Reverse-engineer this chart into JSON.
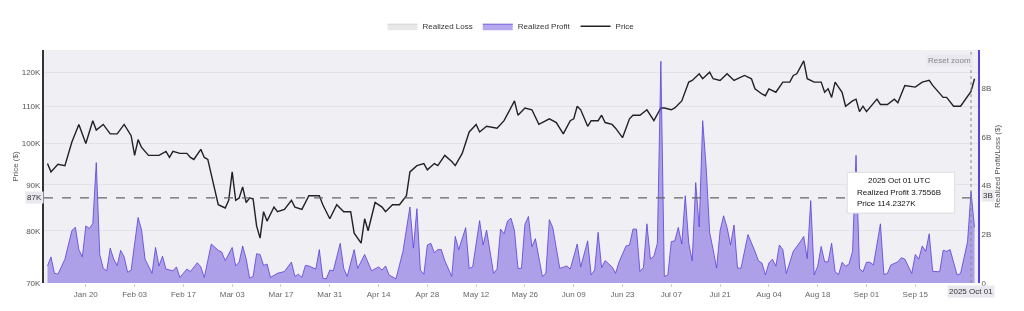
{
  "chart_data": {
    "type": "line",
    "ylabel": "Price ($)",
    "y2label": "Realized Profit/Loss ($)",
    "log": "y",
    "grid": "y",
    "legend": "top",
    "marker": "none",
    "line_style": "solid",
    "xlim": [
      "2025-01-08",
      "2025-10-03"
    ],
    "xticks": [
      {
        "value": "2025-01-20",
        "label": "Jan 20"
      },
      {
        "value": "2025-02-03",
        "label": "Feb 03"
      },
      {
        "value": "2025-02-17",
        "label": "Feb 17"
      },
      {
        "value": "2025-03-03",
        "label": "Mar 03"
      },
      {
        "value": "2025-03-17",
        "label": "Mar 17"
      },
      {
        "value": "2025-03-31",
        "label": "Mar 31"
      },
      {
        "value": "2025-04-14",
        "label": "Apr 14"
      },
      {
        "value": "2025-04-28",
        "label": "Apr 28"
      },
      {
        "value": "2025-05-12",
        "label": "May 12"
      },
      {
        "value": "2025-05-26",
        "label": "May 26"
      },
      {
        "value": "2025-06-09",
        "label": "Jun 09"
      },
      {
        "value": "2025-06-23",
        "label": "Jun 23"
      },
      {
        "value": "2025-07-07",
        "label": "Jul 07"
      },
      {
        "value": "2025-07-21",
        "label": "Jul 21"
      },
      {
        "value": "2025-08-04",
        "label": "Aug 04"
      },
      {
        "value": "2025-08-18",
        "label": "Aug 18"
      },
      {
        "value": "2025-09-01",
        "label": "Sep 01"
      },
      {
        "value": "2025-09-15",
        "label": "Sep 15"
      }
    ],
    "ylim": [
      70000,
      127000
    ],
    "yticks": [
      {
        "value": 70000,
        "label": "70K"
      },
      {
        "value": 80000,
        "label": "80K"
      },
      {
        "value": 90000,
        "label": "90K"
      },
      {
        "value": 100000,
        "label": "100K"
      },
      {
        "value": 110000,
        "label": "110K"
      },
      {
        "value": 120000,
        "label": "120K"
      }
    ],
    "y2lim": [
      0,
      9560000000.0
    ],
    "y2ticks": [
      {
        "value": 0,
        "label": "0"
      },
      {
        "value": 2000000000.0,
        "label": "2B"
      },
      {
        "value": 4000000000.0,
        "label": "4B"
      },
      {
        "value": 6000000000.0,
        "label": "6B"
      },
      {
        "value": 8000000000.0,
        "label": "8B"
      }
    ],
    "ref_lines": [
      {
        "axis": "y",
        "value": 87000,
        "label": "87K",
        "color": "#666666",
        "line_style": "dashed"
      },
      {
        "axis": "x",
        "value": "2025-10-01",
        "label": "2025 Oct 01",
        "color": "#888888",
        "line_style": "dotted"
      }
    ],
    "annotations": [
      "2025 Oct 01 UTC",
      "Realized Profit 3.7556B",
      "Price 114.2327K",
      "3B",
      "Reset zoom"
    ],
    "series": [
      {
        "name": "Realized Loss",
        "type": "area",
        "axis": "y2",
        "color": "#cccccc"
      },
      {
        "name": "Realized Profit",
        "type": "area",
        "axis": "y2",
        "color": "#5a3fd9",
        "x": [
          "2025-01-09",
          "2025-01-10",
          "2025-01-11",
          "2025-01-12",
          "2025-01-14",
          "2025-01-16",
          "2025-01-17",
          "2025-01-18",
          "2025-01-19",
          "2025-01-20",
          "2025-01-21",
          "2025-01-22",
          "2025-01-23",
          "2025-01-24",
          "2025-01-25",
          "2025-01-26",
          "2025-01-27",
          "2025-01-28",
          "2025-01-29",
          "2025-01-30",
          "2025-01-31",
          "2025-02-01",
          "2025-02-02",
          "2025-02-04",
          "2025-02-05",
          "2025-02-06",
          "2025-02-08",
          "2025-02-09",
          "2025-02-10",
          "2025-02-11",
          "2025-02-12",
          "2025-02-14",
          "2025-02-15",
          "2025-02-16",
          "2025-02-18",
          "2025-02-19",
          "2025-02-21",
          "2025-02-22",
          "2025-02-23",
          "2025-02-25",
          "2025-02-27",
          "2025-02-28",
          "2025-03-01",
          "2025-03-03",
          "2025-03-04",
          "2025-03-05",
          "2025-03-06",
          "2025-03-07",
          "2025-03-08",
          "2025-03-09",
          "2025-03-10",
          "2025-03-11",
          "2025-03-12",
          "2025-03-13",
          "2025-03-14",
          "2025-03-16",
          "2025-03-18",
          "2025-03-20",
          "2025-03-21",
          "2025-03-22",
          "2025-03-23",
          "2025-03-24",
          "2025-03-25",
          "2025-03-27",
          "2025-03-28",
          "2025-03-29",
          "2025-03-30",
          "2025-03-31",
          "2025-04-01",
          "2025-04-03",
          "2025-04-04",
          "2025-04-05",
          "2025-04-07",
          "2025-04-08",
          "2025-04-10",
          "2025-04-12",
          "2025-04-14",
          "2025-04-15",
          "2025-04-16",
          "2025-04-17",
          "2025-04-19",
          "2025-04-21",
          "2025-04-23",
          "2025-04-24",
          "2025-04-25",
          "2025-04-26",
          "2025-04-27",
          "2025-04-28",
          "2025-04-29",
          "2025-04-30",
          "2025-05-01",
          "2025-05-02",
          "2025-05-03",
          "2025-05-05",
          "2025-05-06",
          "2025-05-07",
          "2025-05-09",
          "2025-05-10",
          "2025-05-11",
          "2025-05-13",
          "2025-05-14",
          "2025-05-15",
          "2025-05-17",
          "2025-05-18",
          "2025-05-19",
          "2025-05-20",
          "2025-05-21",
          "2025-05-22",
          "2025-05-23",
          "2025-05-24",
          "2025-05-25",
          "2025-05-26",
          "2025-05-27",
          "2025-05-28",
          "2025-05-29",
          "2025-05-31",
          "2025-06-01",
          "2025-06-02",
          "2025-06-03",
          "2025-06-05",
          "2025-06-07",
          "2025-06-08",
          "2025-06-10",
          "2025-06-11",
          "2025-06-13",
          "2025-06-14",
          "2025-06-15",
          "2025-06-16",
          "2025-06-17",
          "2025-06-18",
          "2025-06-20",
          "2025-06-21",
          "2025-06-22",
          "2025-06-24",
          "2025-06-25",
          "2025-06-26",
          "2025-06-27",
          "2025-06-28",
          "2025-06-29",
          "2025-06-30",
          "2025-07-01",
          "2025-07-02",
          "2025-07-03",
          "2025-07-04",
          "2025-07-05",
          "2025-07-06",
          "2025-07-07",
          "2025-07-08",
          "2025-07-09",
          "2025-07-10",
          "2025-07-11",
          "2025-07-12",
          "2025-07-13",
          "2025-07-14",
          "2025-07-15",
          "2025-07-16",
          "2025-07-17",
          "2025-07-18",
          "2025-07-19",
          "2025-07-20",
          "2025-07-21",
          "2025-07-22",
          "2025-07-23",
          "2025-07-24",
          "2025-07-25",
          "2025-07-26",
          "2025-07-27",
          "2025-07-29",
          "2025-07-31",
          "2025-08-01",
          "2025-08-02",
          "2025-08-03",
          "2025-08-04",
          "2025-08-05",
          "2025-08-06",
          "2025-08-07",
          "2025-08-08",
          "2025-08-09",
          "2025-08-11",
          "2025-08-13",
          "2025-08-14",
          "2025-08-15",
          "2025-08-16",
          "2025-08-17",
          "2025-08-18",
          "2025-08-19",
          "2025-08-20",
          "2025-08-21",
          "2025-08-22",
          "2025-08-23",
          "2025-08-24",
          "2025-08-25",
          "2025-08-26",
          "2025-08-27",
          "2025-08-28",
          "2025-08-29",
          "2025-08-30",
          "2025-08-31",
          "2025-09-01",
          "2025-09-02",
          "2025-09-03",
          "2025-09-05",
          "2025-09-06",
          "2025-09-07",
          "2025-09-08",
          "2025-09-10",
          "2025-09-11",
          "2025-09-12",
          "2025-09-14",
          "2025-09-15",
          "2025-09-16",
          "2025-09-17",
          "2025-09-18",
          "2025-09-19",
          "2025-09-20",
          "2025-09-22",
          "2025-09-23",
          "2025-09-24",
          "2025-09-25",
          "2025-09-27",
          "2025-09-28",
          "2025-09-30",
          "2025-10-01",
          "2025-10-02"
        ],
        "values": [
          700000000.0,
          1070000000.0,
          400000000.0,
          360000000.0,
          980000000.0,
          2150000000.0,
          2290000000.0,
          1370000000.0,
          1070000000.0,
          2340000000.0,
          2240000000.0,
          2440000000.0,
          4940000000.0,
          1170000000.0,
          600000000.0,
          500000000.0,
          1430000000.0,
          980000000.0,
          720000000.0,
          1340000000.0,
          1070000000.0,
          440000000.0,
          530000000.0,
          2690000000.0,
          2170000000.0,
          980000000.0,
          400000000.0,
          1460000000.0,
          700000000.0,
          1100000000.0,
          570000000.0,
          500000000.0,
          660000000.0,
          230000000.0,
          570000000.0,
          470000000.0,
          830000000.0,
          660000000.0,
          230000000.0,
          1600000000.0,
          1340000000.0,
          1270000000.0,
          920000000.0,
          1460000000.0,
          700000000.0,
          860000000.0,
          1520000000.0,
          1000000000.0,
          200000000.0,
          270000000.0,
          1200000000.0,
          1170000000.0,
          720000000.0,
          780000000.0,
          230000000.0,
          400000000.0,
          470000000.0,
          860000000.0,
          270000000.0,
          360000000.0,
          230000000.0,
          720000000.0,
          700000000.0,
          570000000.0,
          1370000000.0,
          200000000.0,
          170000000.0,
          530000000.0,
          500000000.0,
          1630000000.0,
          600000000.0,
          270000000.0,
          1370000000.0,
          600000000.0,
          1170000000.0,
          500000000.0,
          660000000.0,
          530000000.0,
          700000000.0,
          330000000.0,
          170000000.0,
          1300000000.0,
          3120000000.0,
          1430000000.0,
          3050000000.0,
          530000000.0,
          360000000.0,
          1560000000.0,
          1630000000.0,
          1240000000.0,
          1370000000.0,
          1370000000.0,
          920000000.0,
          270000000.0,
          1910000000.0,
          1370000000.0,
          2270000000.0,
          600000000.0,
          660000000.0,
          2560000000.0,
          1560000000.0,
          2170000000.0,
          400000000.0,
          570000000.0,
          2210000000.0,
          2020000000.0,
          2540000000.0,
          2660000000.0,
          2150000000.0,
          600000000.0,
          600000000.0,
          2410000000.0,
          2730000000.0,
          1490000000.0,
          1820000000.0,
          270000000.0,
          400000000.0,
          2600000000.0,
          2270000000.0,
          600000000.0,
          700000000.0,
          570000000.0,
          1600000000.0,
          660000000.0,
          1730000000.0,
          330000000.0,
          530000000.0,
          2080000000.0,
          630000000.0,
          920000000.0,
          660000000.0,
          400000000.0,
          860000000.0,
          1520000000.0,
          1560000000.0,
          2210000000.0,
          2210000000.0,
          470000000.0,
          630000000.0,
          2430000000.0,
          980000000.0,
          1100000000.0,
          1630000000.0,
          9100000000.0,
          270000000.0,
          330000000.0,
          1700000000.0,
          1730000000.0,
          2280000000.0,
          1600000000.0,
          3580000000.0,
          1630000000.0,
          910000000.0,
          4120000000.0,
          2300000000.0,
          6660000000.0,
          4750000000.0,
          2080000000.0,
          1370000000.0,
          610000000.0,
          2150000000.0,
          2760000000.0,
          2280000000.0,
          1560000000.0,
          2380000000.0,
          610000000.0,
          610000000.0,
          1990000000.0,
          1300000000.0,
          910000000.0,
          820000000.0,
          330000000.0,
          820000000.0,
          980000000.0,
          690000000.0,
          1560000000.0,
          1370000000.0,
          390000000.0,
          1300000000.0,
          1690000000.0,
          1910000000.0,
          1000000000.0,
          3380000000.0,
          330000000.0,
          690000000.0,
          1500000000.0,
          870000000.0,
          870000000.0,
          1630000000.0,
          460000000.0,
          350000000.0,
          850000000.0,
          690000000.0,
          780000000.0,
          1300000000.0,
          5240000000.0,
          590000000.0,
          460000000.0,
          850000000.0,
          850000000.0,
          740000000.0,
          2430000000.0,
          350000000.0,
          390000000.0,
          740000000.0,
          870000000.0,
          1040000000.0,
          980000000.0,
          390000000.0,
          1170000000.0,
          980000000.0,
          1520000000.0,
          1300000000.0,
          2020000000.0,
          480000000.0,
          460000000.0,
          1340000000.0,
          1300000000.0,
          1370000000.0,
          330000000.0,
          390000000.0,
          1690000000.0,
          3755600000.0,
          2280000000.0
        ]
      },
      {
        "name": "Price",
        "axis": "y",
        "color": "#222222",
        "x": [
          "2025-01-09",
          "2025-01-10",
          "2025-01-12",
          "2025-01-14",
          "2025-01-16",
          "2025-01-18",
          "2025-01-20",
          "2025-01-22",
          "2025-01-23",
          "2025-01-25",
          "2025-01-27",
          "2025-01-29",
          "2025-01-31",
          "2025-02-02",
          "2025-02-03",
          "2025-02-04",
          "2025-02-05",
          "2025-02-07",
          "2025-02-10",
          "2025-02-12",
          "2025-02-13",
          "2025-02-14",
          "2025-02-16",
          "2025-02-18",
          "2025-02-19",
          "2025-02-20",
          "2025-02-22",
          "2025-02-23",
          "2025-02-24",
          "2025-02-27",
          "2025-03-01",
          "2025-03-02",
          "2025-03-03",
          "2025-03-04",
          "2025-03-05",
          "2025-03-06",
          "2025-03-07",
          "2025-03-08",
          "2025-03-09",
          "2025-03-10",
          "2025-03-11",
          "2025-03-12",
          "2025-03-13",
          "2025-03-15",
          "2025-03-16",
          "2025-03-18",
          "2025-03-20",
          "2025-03-21",
          "2025-03-23",
          "2025-03-25",
          "2025-03-28",
          "2025-03-29",
          "2025-03-31",
          "2025-04-02",
          "2025-04-04",
          "2025-04-06",
          "2025-04-07",
          "2025-04-09",
          "2025-04-10",
          "2025-04-11",
          "2025-04-13",
          "2025-04-15",
          "2025-04-16",
          "2025-04-18",
          "2025-04-20",
          "2025-04-22",
          "2025-04-23",
          "2025-04-25",
          "2025-04-27",
          "2025-04-28",
          "2025-04-30",
          "2025-05-01",
          "2025-05-03",
          "2025-05-05",
          "2025-05-06",
          "2025-05-08",
          "2025-05-10",
          "2025-05-12",
          "2025-05-13",
          "2025-05-15",
          "2025-05-18",
          "2025-05-20",
          "2025-05-23",
          "2025-05-24",
          "2025-05-26",
          "2025-05-28",
          "2025-05-30",
          "2025-06-02",
          "2025-06-04",
          "2025-06-06",
          "2025-06-08",
          "2025-06-09",
          "2025-06-10",
          "2025-06-11",
          "2025-06-13",
          "2025-06-14",
          "2025-06-16",
          "2025-06-17",
          "2025-06-18",
          "2025-06-20",
          "2025-06-21",
          "2025-06-23",
          "2025-06-25",
          "2025-06-26",
          "2025-06-28",
          "2025-06-30",
          "2025-07-02",
          "2025-07-04",
          "2025-07-05",
          "2025-07-07",
          "2025-07-08",
          "2025-07-10",
          "2025-07-12",
          "2025-07-13",
          "2025-07-15",
          "2025-07-16",
          "2025-07-18",
          "2025-07-19",
          "2025-07-21",
          "2025-07-23",
          "2025-07-25",
          "2025-07-28",
          "2025-07-30",
          "2025-07-31",
          "2025-08-02",
          "2025-08-03",
          "2025-08-04",
          "2025-08-06",
          "2025-08-08",
          "2025-08-10",
          "2025-08-11",
          "2025-08-12",
          "2025-08-14",
          "2025-08-15",
          "2025-08-17",
          "2025-08-19",
          "2025-08-20",
          "2025-08-21",
          "2025-08-22",
          "2025-08-23",
          "2025-08-25",
          "2025-08-26",
          "2025-08-28",
          "2025-08-29",
          "2025-08-30",
          "2025-08-31",
          "2025-09-01",
          "2025-09-04",
          "2025-09-05",
          "2025-09-07",
          "2025-09-09",
          "2025-09-10",
          "2025-09-12",
          "2025-09-15",
          "2025-09-17",
          "2025-09-19",
          "2025-09-20",
          "2025-09-23",
          "2025-09-24",
          "2025-09-26",
          "2025-09-28",
          "2025-10-01",
          "2025-10-02"
        ],
        "values": [
          95000,
          93000,
          94800,
          94500,
          100400,
          105000,
          100000,
          106000,
          103500,
          105000,
          102500,
          102500,
          105000,
          102000,
          97000,
          101000,
          99000,
          97000,
          97000,
          98000,
          96500,
          98000,
          97500,
          97500,
          96500,
          96000,
          98500,
          96500,
          96000,
          85500,
          84800,
          86500,
          93000,
          86500,
          87000,
          89500,
          86000,
          87000,
          86800,
          81000,
          78500,
          84000,
          82000,
          85000,
          84000,
          84500,
          86500,
          85000,
          84500,
          87500,
          87500,
          85500,
          82500,
          85500,
          84000,
          84000,
          79500,
          77500,
          82500,
          80000,
          86000,
          85000,
          84000,
          85500,
          85500,
          87500,
          93000,
          94500,
          95000,
          93500,
          95000,
          94500,
          97000,
          95500,
          94500,
          97500,
          103000,
          105000,
          103000,
          104500,
          104000,
          106000,
          111500,
          107500,
          109500,
          109000,
          105000,
          106500,
          105500,
          102500,
          106000,
          106500,
          110000,
          109000,
          104500,
          106000,
          106000,
          107500,
          105500,
          105000,
          104000,
          101500,
          106500,
          107500,
          107500,
          109000,
          106000,
          109500,
          109500,
          109000,
          109500,
          111500,
          117000,
          117500,
          119500,
          118000,
          120000,
          118000,
          117500,
          119500,
          117500,
          119000,
          118000,
          115000,
          113500,
          113000,
          115000,
          114000,
          117000,
          117000,
          119000,
          119500,
          123500,
          118000,
          117000,
          117000,
          114000,
          115000,
          112500,
          117000,
          114000,
          110000,
          111500,
          112000,
          108500,
          110000,
          108500,
          112000,
          110500,
          110500,
          112000,
          111000,
          116000,
          115500,
          117000,
          117500,
          116000,
          112500,
          112500,
          110000,
          110000,
          114232.7,
          118000
        ]
      }
    ]
  }
}
